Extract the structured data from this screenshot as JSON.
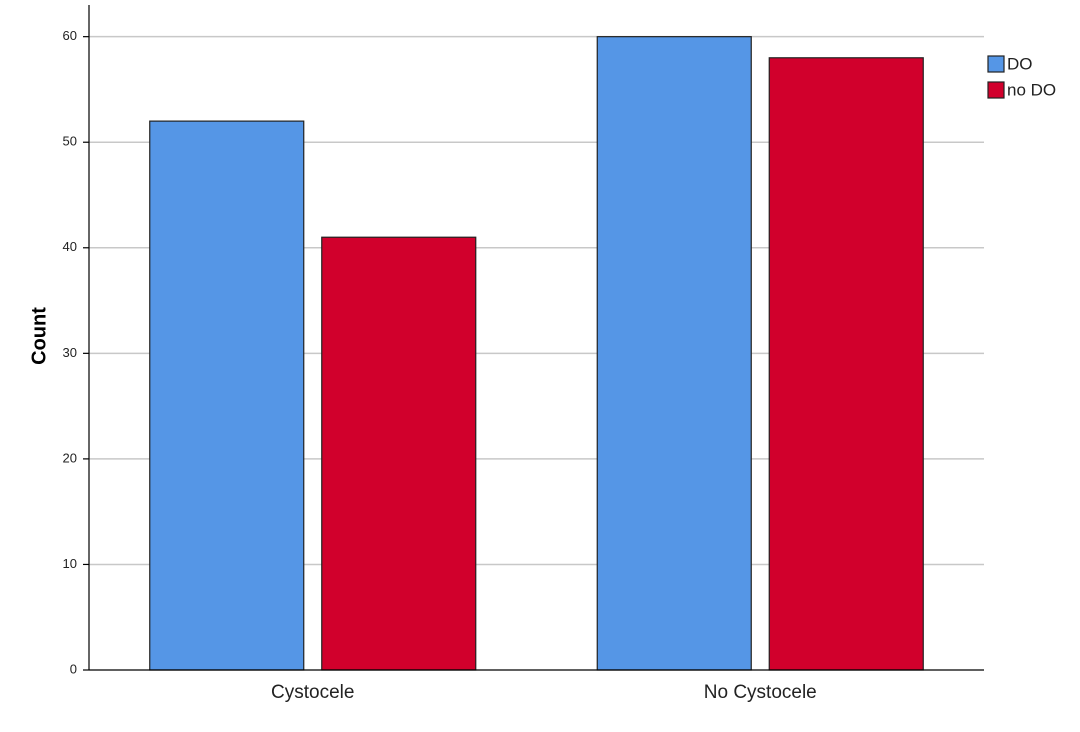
{
  "chart_data": {
    "type": "bar",
    "title": "",
    "xlabel": "",
    "ylabel": "Count",
    "ylim": [
      0,
      63
    ],
    "yticks": [
      0,
      10,
      20,
      30,
      40,
      50,
      60
    ],
    "grid": true,
    "legend_position": "top-right",
    "categories": [
      "Cystocele",
      "No Cystocele"
    ],
    "series": [
      {
        "name": "DO",
        "color": "#5596e6",
        "values": [
          52,
          60
        ]
      },
      {
        "name": "no DO",
        "color": "#d1002c",
        "values": [
          41,
          58
        ]
      }
    ]
  }
}
